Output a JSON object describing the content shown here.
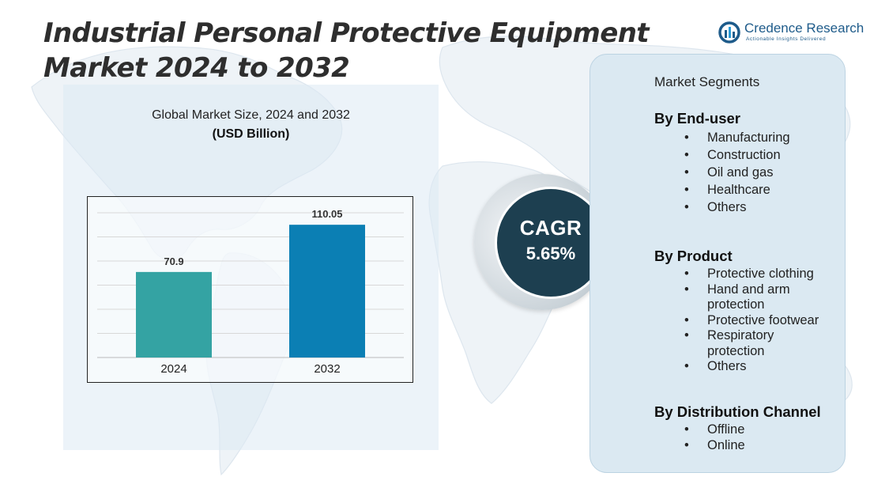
{
  "title": "Industrial Personal Protective Equipment Market 2024 to 2032",
  "logo": {
    "name": "Credence Research",
    "tagline": "Actionable Insights Delivered"
  },
  "chart_header": {
    "title": "Global Market Size, 2024 and 2032",
    "unit": "(USD Billion)"
  },
  "chart_data": {
    "type": "bar",
    "title": "Global Market Size, 2024 and 2032",
    "ylabel": "(USD Billion)",
    "xlabel": "",
    "categories": [
      "2024",
      "2032"
    ],
    "values": [
      70.9,
      110.05
    ],
    "data_labels": [
      "70.9",
      "110.05"
    ],
    "bar_colors": [
      "#34a3a3",
      "#0b7fb4"
    ],
    "ylim": [
      0,
      120
    ],
    "grid": true,
    "legend": "none"
  },
  "cagr": {
    "label": "CAGR",
    "value": "5.65%"
  },
  "segments": {
    "header": "Market Segments",
    "end_user": {
      "title": "By End-user",
      "items": [
        "Manufacturing",
        "Construction",
        "Oil and gas",
        "Healthcare",
        "Others"
      ]
    },
    "product": {
      "title": "By Product",
      "items": [
        "Protective clothing",
        "Hand and arm protection",
        "Protective footwear",
        "Respiratory protection",
        "Others"
      ]
    },
    "distribution": {
      "title": "By Distribution Channel",
      "items": [
        "Offline",
        "Online"
      ]
    }
  },
  "colors": {
    "title_text": "#2e2e2e",
    "cagr_fill": "#1d3f50",
    "panel_fill": "#dbe9f2",
    "bar_2024": "#34a3a3",
    "bar_2032": "#0b7fb4"
  }
}
